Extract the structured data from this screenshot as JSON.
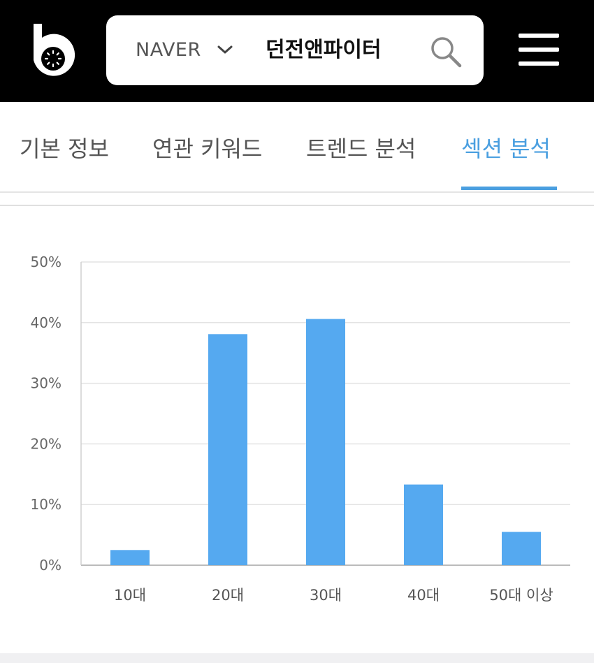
{
  "header": {
    "logo_icon": "b-logo-icon",
    "engine": "NAVER",
    "query": "던전앤파이터",
    "search_icon": "search-icon",
    "menu_icon": "hamburger-menu-icon"
  },
  "tabs": [
    {
      "label": "기본 정보",
      "active": false
    },
    {
      "label": "연관 키워드",
      "active": false
    },
    {
      "label": "트렌드 분석",
      "active": false
    },
    {
      "label": "섹션 분석",
      "active": true
    }
  ],
  "colors": {
    "bar": "#55a9f0",
    "active_tab": "#4a9fe0",
    "header_bg": "#000000"
  },
  "chart_data": {
    "type": "bar",
    "categories": [
      "10대",
      "20대",
      "30대",
      "40대",
      "50대 이상"
    ],
    "values": [
      2.5,
      38.1,
      40.6,
      13.3,
      5.5
    ],
    "ylim": [
      0,
      50
    ],
    "yticks": [
      "0%",
      "10%",
      "20%",
      "30%",
      "40%",
      "50%"
    ],
    "ytick_values": [
      0,
      10,
      20,
      30,
      40,
      50
    ],
    "grid": true,
    "legend": "none"
  }
}
